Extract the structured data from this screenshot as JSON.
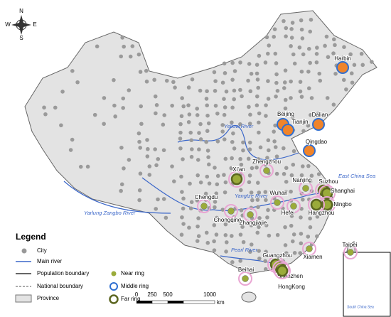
{
  "compass": [
    "N",
    "E",
    "S",
    "W"
  ],
  "legend": {
    "title": "Legend",
    "items": [
      "City",
      "Main river",
      "Population boundary",
      "National boundary",
      "Province",
      "Near ring",
      "Middle ring",
      "Far ring"
    ]
  },
  "cities": [
    "Harbin",
    "Beijing",
    "Tianjin",
    "Dalian",
    "Qingdao",
    "Zhengzhou",
    "Xi'an",
    "Nanjing",
    "Suzhou",
    "Shanghai",
    "Ningbo",
    "Hangzhou",
    "Hefei",
    "Wuhan",
    "Chengdu",
    "Chongqing",
    "Zhangjiajie",
    "Xiamen",
    "Taipei",
    "Guangzhou",
    "Shenzhen",
    "HongKong",
    "Beihai"
  ],
  "rivers": [
    "Yellow River",
    "Yangtze River",
    "Yarlung Zangbo River",
    "Pearl River"
  ],
  "seas": [
    "East China Sea",
    "South China Sea"
  ],
  "scale": {
    "ticks": [
      "0",
      "250",
      "500",
      "1000"
    ],
    "unit": "km"
  }
}
